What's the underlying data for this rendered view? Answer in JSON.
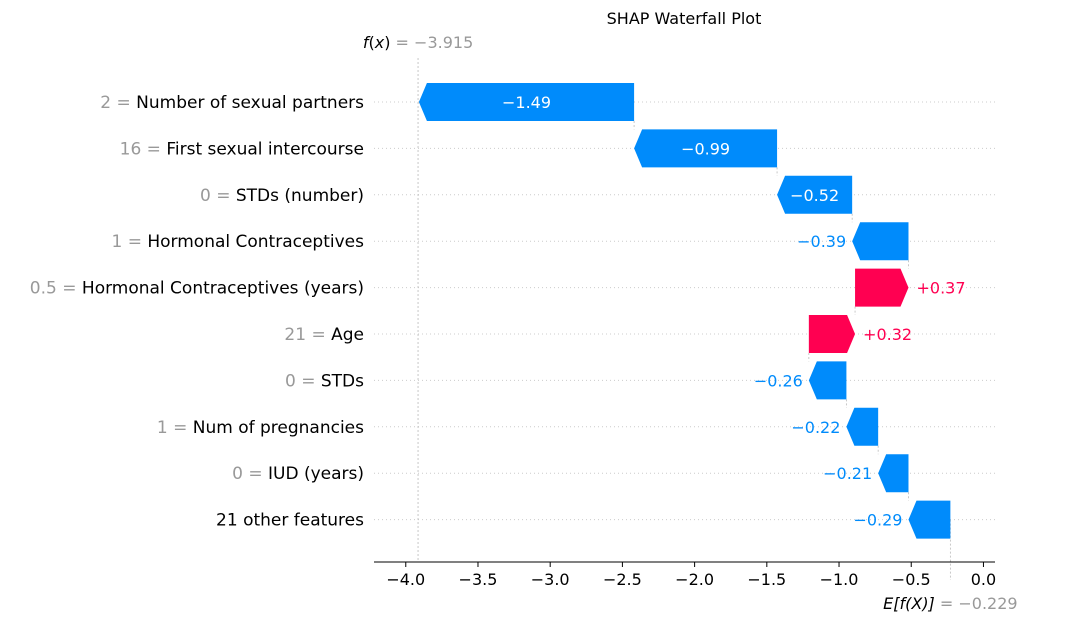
{
  "chart_data": {
    "type": "waterfall",
    "title": "SHAP Waterfall Plot",
    "fx": {
      "name_f": "f",
      "name_x": "x",
      "value_text": "= −3.915",
      "value": -3.915
    },
    "base": {
      "name": "E[f(X)]",
      "value_text": "= −0.229",
      "value": -0.229
    },
    "xlim": [
      -4.22,
      0.08
    ],
    "xticks": [
      -4.0,
      -3.5,
      -3.0,
      -2.5,
      -2.0,
      -1.5,
      -1.0,
      -0.5,
      0.0
    ],
    "xtick_labels": [
      "−4.0",
      "−3.5",
      "−3.0",
      "−2.5",
      "−2.0",
      "−1.5",
      "−1.0",
      "−0.5",
      "0.0"
    ],
    "features": [
      {
        "value": "2",
        "name": "Number of sexual partners",
        "shap": -1.49,
        "label": "−1.49"
      },
      {
        "value": "16",
        "name": "First sexual intercourse",
        "shap": -0.99,
        "label": "−0.99"
      },
      {
        "value": "0",
        "name": "STDs (number)",
        "shap": -0.52,
        "label": "−0.52"
      },
      {
        "value": "1",
        "name": "Hormonal Contraceptives",
        "shap": -0.39,
        "label": "−0.39"
      },
      {
        "value": "0.5",
        "name": "Hormonal Contraceptives (years)",
        "shap": 0.37,
        "label": "+0.37"
      },
      {
        "value": "21",
        "name": "Age",
        "shap": 0.32,
        "label": "+0.32"
      },
      {
        "value": "0",
        "name": "STDs",
        "shap": -0.26,
        "label": "−0.26"
      },
      {
        "value": "1",
        "name": "Num of pregnancies",
        "shap": -0.22,
        "label": "−0.22"
      },
      {
        "value": "0",
        "name": "IUD (years)",
        "shap": -0.21,
        "label": "−0.21"
      },
      {
        "value": "",
        "name": "21 other features",
        "shap": -0.29,
        "label": "−0.29"
      }
    ],
    "colors": {
      "positive": "#ff0051",
      "negative": "#008bfb",
      "muted": "#999999"
    }
  }
}
